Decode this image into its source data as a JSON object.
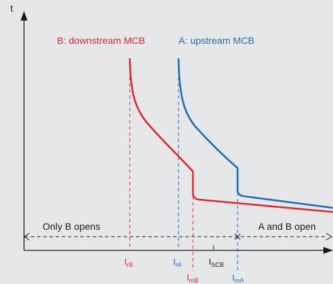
{
  "colors": {
    "background": "#e6e7e8",
    "axis": "#1a1a1a",
    "curve_b": "#e3262d",
    "curve_a": "#1f6db3",
    "isc": "#2e9e3e"
  },
  "axis": {
    "y_label": "t"
  },
  "curves": {
    "b_label": "B: downstream MCB",
    "a_label": "A: upstream MCB"
  },
  "regions": {
    "left_label": "Only B opens",
    "right_label": "A and B open"
  },
  "markers": {
    "irb": {
      "main": "I",
      "sub": "rB"
    },
    "ira": {
      "main": "I",
      "sub": "rA"
    },
    "iscb": {
      "main": "I",
      "sub": "SCB"
    },
    "imb": {
      "main": "I",
      "sub": "mB"
    },
    "ima": {
      "main": "I",
      "sub": "mA"
    }
  }
}
